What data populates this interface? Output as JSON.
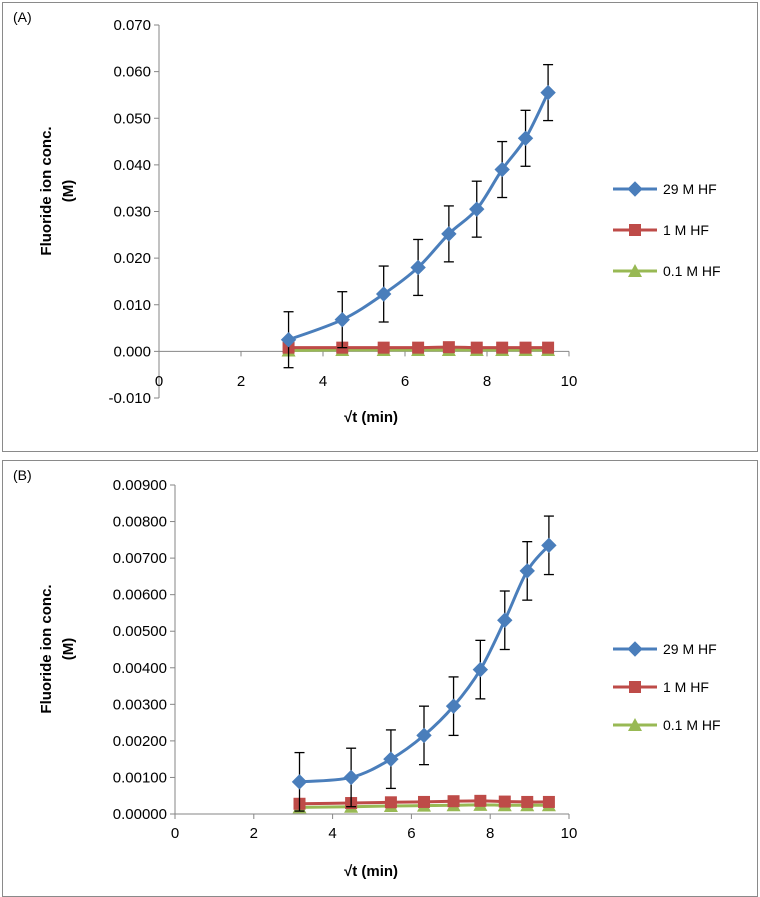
{
  "chart_data": [
    {
      "id": "A",
      "type": "line",
      "panel_label": "(A)",
      "xlabel": "√t (min)",
      "ylabel_line1": "Fluoride ion conc.",
      "ylabel_line2": "(M)",
      "xlim": [
        0,
        10
      ],
      "ylim": [
        -0.01,
        0.07
      ],
      "x_ticks": [
        0,
        2,
        4,
        6,
        8,
        10
      ],
      "x_tick_labels": [
        "0",
        "2",
        "4",
        "6",
        "8",
        "10"
      ],
      "y_ticks": [
        -0.01,
        0.0,
        0.01,
        0.02,
        0.03,
        0.04,
        0.05,
        0.06,
        0.07
      ],
      "y_tick_labels": [
        "-0.010",
        "0.000",
        "0.010",
        "0.020",
        "0.030",
        "0.040",
        "0.050",
        "0.060",
        "0.070"
      ],
      "x": [
        3.16,
        4.47,
        5.48,
        6.32,
        7.07,
        7.75,
        8.37,
        8.94,
        9.49
      ],
      "legend_position": "right",
      "series": [
        {
          "name": "29 M HF",
          "color": "#4A7EBB",
          "marker": "diamond",
          "values": [
            0.0025,
            0.0068,
            0.0123,
            0.018,
            0.0252,
            0.0305,
            0.039,
            0.0457,
            0.0555
          ],
          "errors": [
            0.006,
            0.006,
            0.006,
            0.006,
            0.006,
            0.006,
            0.006,
            0.006,
            0.006
          ]
        },
        {
          "name": "1 M HF",
          "color": "#BE4B48",
          "marker": "square",
          "values": [
            0.0008,
            0.0008,
            0.0008,
            0.0008,
            0.0009,
            0.0008,
            0.0008,
            0.0008,
            0.0008
          ]
        },
        {
          "name": "0.1 M HF",
          "color": "#98B954",
          "marker": "triangle",
          "values": [
            0.0002,
            0.0003,
            0.0003,
            0.0003,
            0.0003,
            0.0003,
            0.0003,
            0.0003,
            0.0003
          ]
        }
      ]
    },
    {
      "id": "B",
      "type": "line",
      "panel_label": "(B)",
      "xlabel": "√t (min)",
      "ylabel_line1": "Fluoride ion conc.",
      "ylabel_line2": "(M)",
      "xlim": [
        0,
        10
      ],
      "ylim": [
        0,
        0.009
      ],
      "x_ticks": [
        0,
        2,
        4,
        6,
        8,
        10
      ],
      "x_tick_labels": [
        "0",
        "2",
        "4",
        "6",
        "8",
        "10"
      ],
      "y_ticks": [
        0,
        0.001,
        0.002,
        0.003,
        0.004,
        0.005,
        0.006,
        0.007,
        0.008,
        0.009
      ],
      "y_tick_labels": [
        "0.00000",
        "0.00100",
        "0.00200",
        "0.00300",
        "0.00400",
        "0.00500",
        "0.00600",
        "0.00700",
        "0.00800",
        "0.00900"
      ],
      "x": [
        3.16,
        4.47,
        5.48,
        6.32,
        7.07,
        7.75,
        8.37,
        8.94,
        9.49
      ],
      "legend_position": "right",
      "series": [
        {
          "name": "29 M HF",
          "color": "#4A7EBB",
          "marker": "diamond",
          "values": [
            0.00088,
            0.001,
            0.0015,
            0.00215,
            0.00295,
            0.00395,
            0.0053,
            0.00665,
            0.00735
          ],
          "errors": [
            0.0008,
            0.0008,
            0.0008,
            0.0008,
            0.0008,
            0.0008,
            0.0008,
            0.0008,
            0.0008
          ]
        },
        {
          "name": "1 M HF",
          "color": "#BE4B48",
          "marker": "square",
          "values": [
            0.00028,
            0.0003,
            0.00032,
            0.00033,
            0.00035,
            0.00036,
            0.00034,
            0.00033,
            0.00033
          ]
        },
        {
          "name": "0.1 M HF",
          "color": "#98B954",
          "marker": "triangle",
          "values": [
            0.00018,
            0.0002,
            0.00022,
            0.00023,
            0.00024,
            0.00025,
            0.00024,
            0.00024,
            0.00024
          ]
        }
      ]
    }
  ]
}
